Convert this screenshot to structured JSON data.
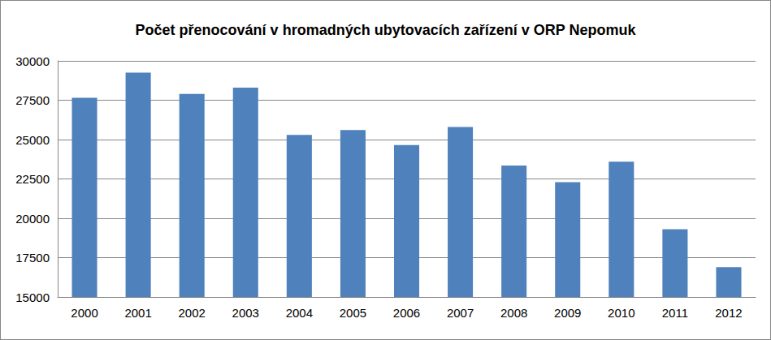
{
  "chart_data": {
    "type": "bar",
    "title": "Počet přenocování v hromadných ubytovacích zařízení v ORP Nepomuk",
    "categories": [
      "2000",
      "2001",
      "2002",
      "2003",
      "2004",
      "2005",
      "2006",
      "2007",
      "2008",
      "2009",
      "2010",
      "2011",
      "2012"
    ],
    "values": [
      27650,
      29250,
      27900,
      28300,
      25300,
      25600,
      24650,
      25800,
      23350,
      22300,
      23600,
      19300,
      16900
    ],
    "color": "#4f81bd",
    "ylim": [
      15000,
      30000
    ],
    "yticks": [
      15000,
      17500,
      20000,
      22500,
      25000,
      27500,
      30000
    ],
    "grid": true
  }
}
